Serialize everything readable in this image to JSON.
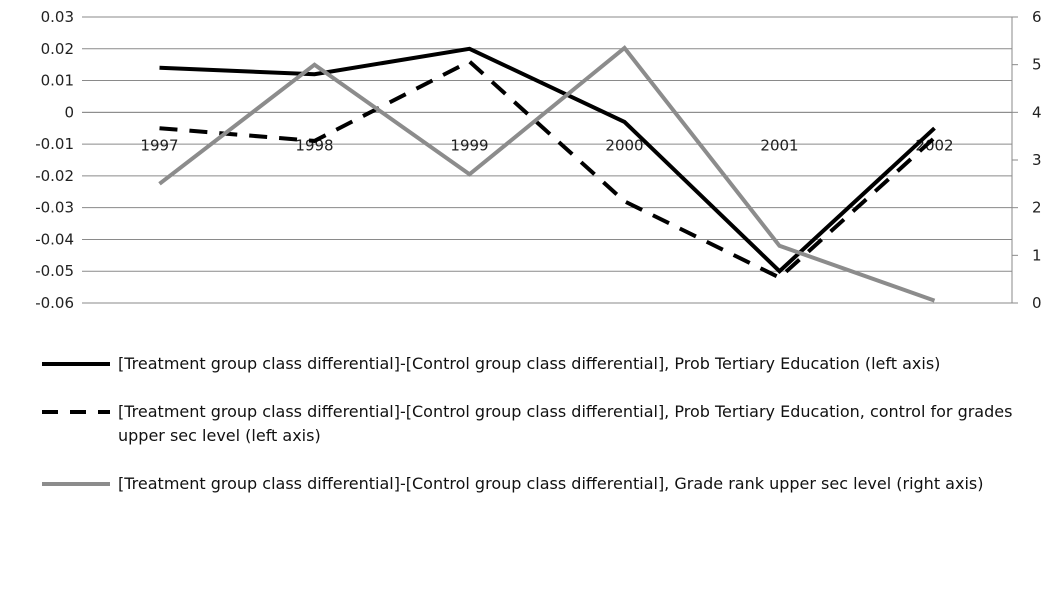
{
  "chart_data": {
    "type": "line",
    "categories": [
      "1997",
      "1998",
      "1999",
      "2000",
      "2001",
      "2002"
    ],
    "y_left": {
      "ylim": [
        -0.06,
        0.03
      ],
      "ticks": [
        "0.03",
        "0.02",
        "0.01",
        "0",
        "-0.01",
        "-0.02",
        "-0.03",
        "-0.04",
        "-0.05",
        "-0.06"
      ]
    },
    "y_right": {
      "ylim": [
        0,
        6
      ],
      "ticks": [
        "6",
        "5",
        "4",
        "3",
        "2",
        "1",
        "0"
      ]
    },
    "grid": true,
    "legend_position": "bottom",
    "series": [
      {
        "name": "[Treatment group class differential]-[Control group class differential], Prob Tertiary Education (left axis)",
        "axis": "left",
        "style": "solid",
        "color": "#000000",
        "values": [
          0.014,
          0.012,
          0.02,
          -0.003,
          -0.05,
          -0.005
        ]
      },
      {
        "name": "[Treatment group class differential]-[Control group class differential], Prob Tertiary Education, control for grades upper sec level (left axis)",
        "axis": "left",
        "style": "dashed",
        "color": "#000000",
        "values": [
          -0.005,
          -0.009,
          0.016,
          -0.028,
          -0.052,
          -0.008
        ]
      },
      {
        "name": "[Treatment group class differential]-[Control group class differential], Grade rank upper sec level (right axis)",
        "axis": "right",
        "style": "solid",
        "color": "#8c8c8c",
        "values": [
          2.5,
          5.0,
          2.7,
          5.35,
          1.2,
          0.05
        ]
      }
    ]
  }
}
